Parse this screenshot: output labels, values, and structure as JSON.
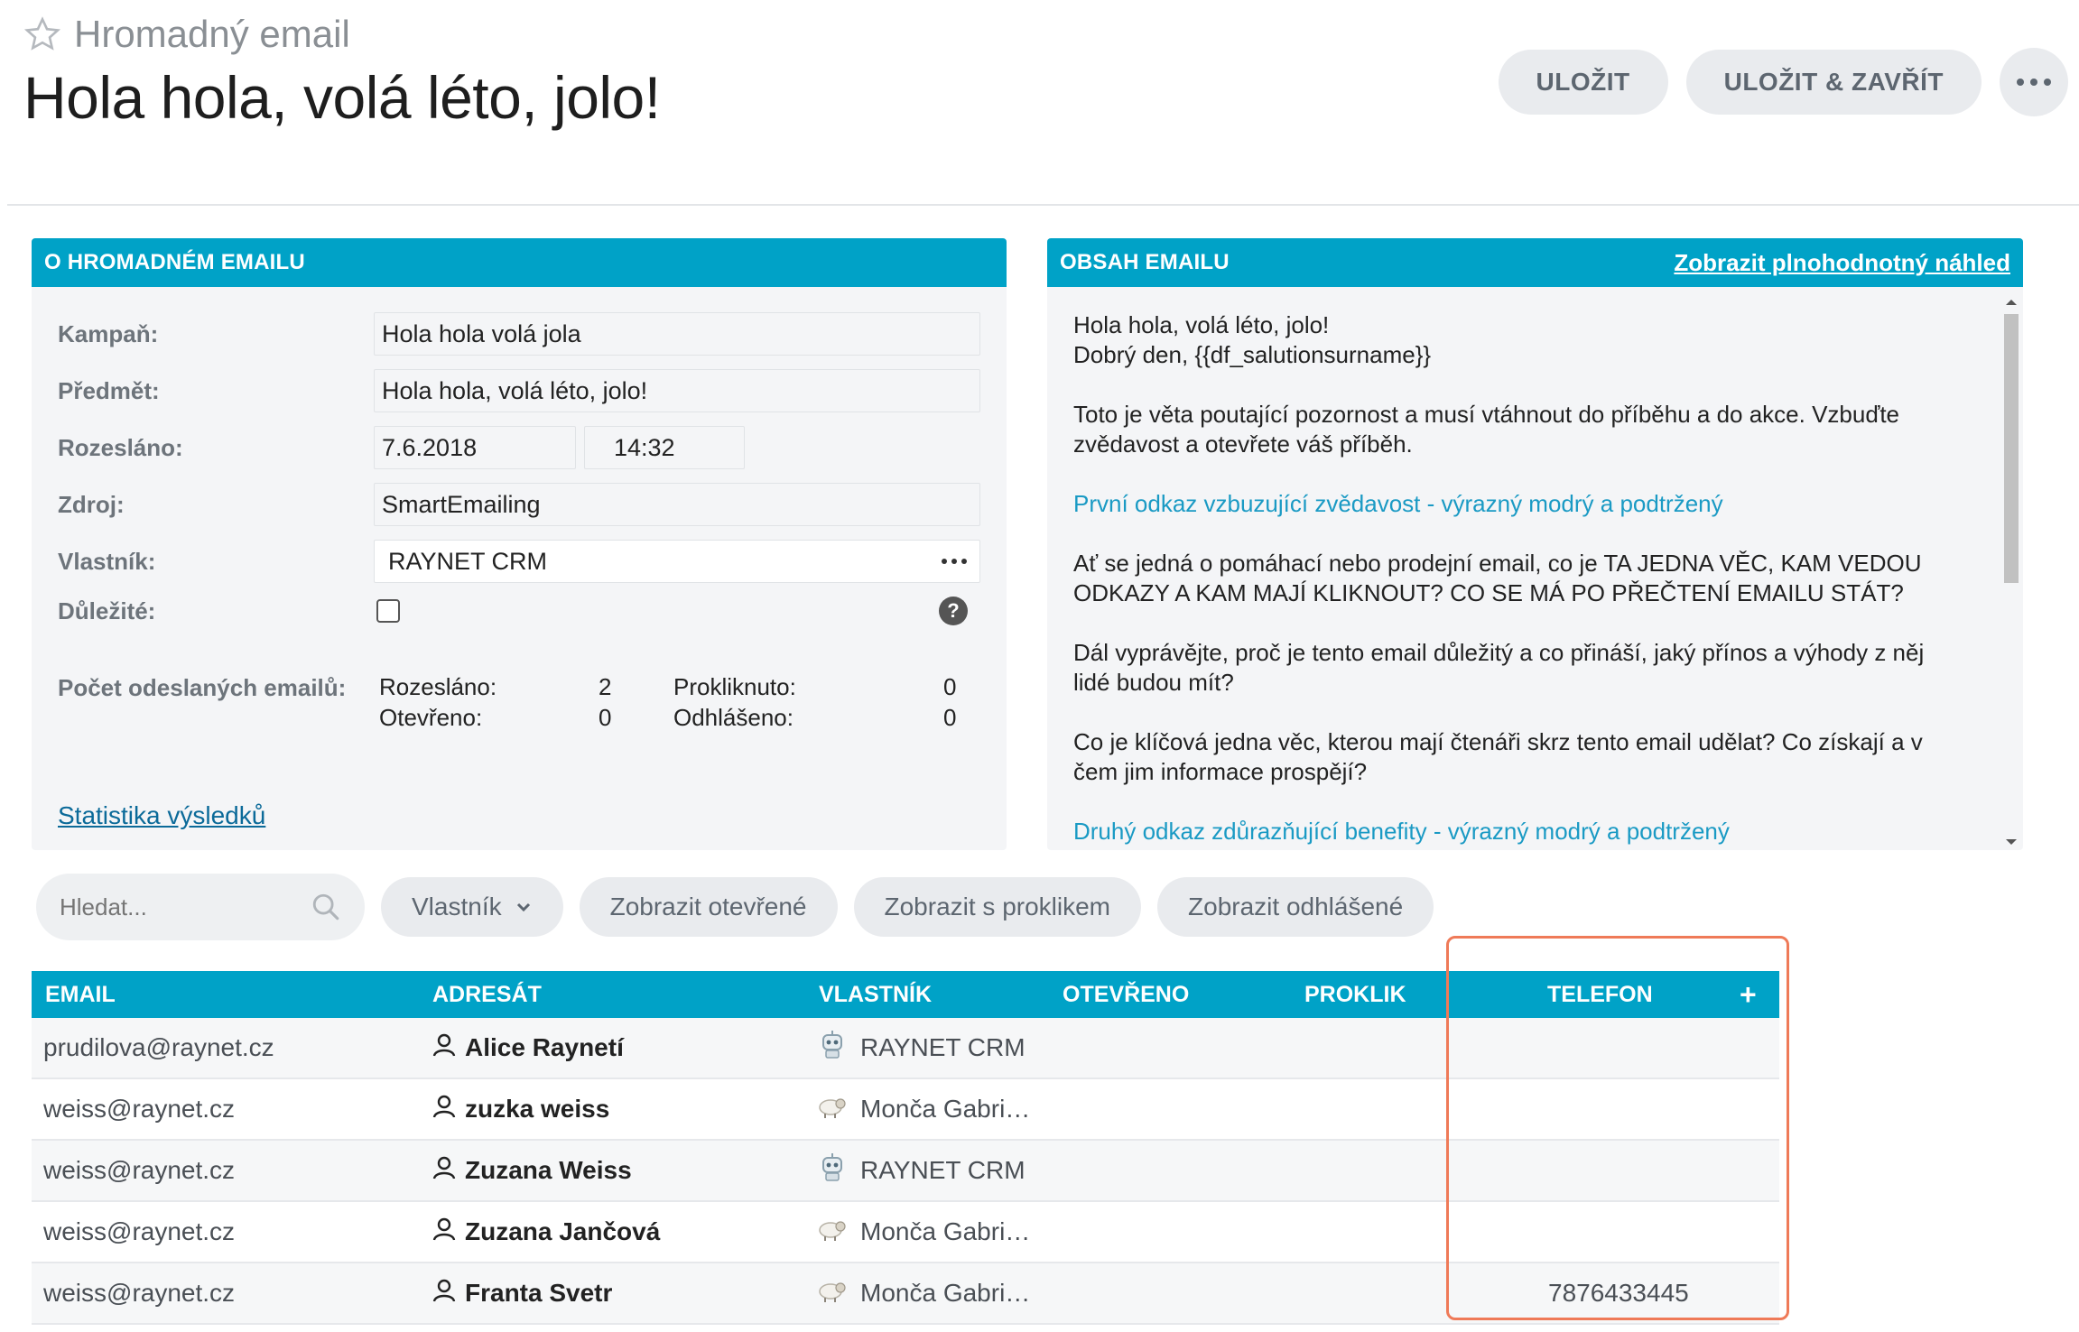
{
  "header": {
    "record_type": "Hromadný email",
    "title": "Hola hola, volá léto, jolo!",
    "save_label": "ULOŽIT",
    "save_close_label": "ULOŽIT & ZAVŘÍT"
  },
  "about": {
    "heading": "O HROMADNÉM EMAILU",
    "fields": {
      "campaign_label": "Kampaň:",
      "campaign_value": "Hola hola volá jola",
      "subject_label": "Předmět:",
      "subject_value": "Hola hola, volá léto, jolo!",
      "sent_label": "Rozesláno:",
      "sent_date": "7.6.2018",
      "sent_time": "14:32",
      "source_label": "Zdroj:",
      "source_value": "SmartEmailing",
      "owner_label": "Vlastník:",
      "owner_value": "RAYNET CRM",
      "important_label": "Důležité:",
      "important_checked": false,
      "help": "?"
    },
    "stats": {
      "label": "Počet odeslaných emailů:",
      "sent_label": "Rozesláno:",
      "sent_value": "2",
      "opened_label": "Otevřeno:",
      "opened_value": "0",
      "clicked_label": "Prokliknuto:",
      "clicked_value": "0",
      "unsub_label": "Odhlášeno:",
      "unsub_value": "0"
    },
    "results_link": "Statistika výsledků"
  },
  "content": {
    "heading": "OBSAH EMAILU",
    "preview_link": "Zobrazit plnohodnotný náhled",
    "body": [
      {
        "lines": [
          "Hola hola, volá léto, jolo!",
          "Dobrý den, {{df_salutionsurname}}"
        ],
        "style": "text"
      },
      {
        "lines": [
          "Toto je věta poutající pozornost a musí vtáhnout do příběhu a do akce. Vzbuďte",
          "zvědavost a otevřete váš příběh."
        ],
        "style": "text"
      },
      {
        "lines": [
          "První odkaz vzbuzující zvědavost - výrazný modrý a podtržený"
        ],
        "style": "link"
      },
      {
        "lines": [
          "Ať se jedná o pomáhací nebo prodejní email, co je TA JEDNA VĚC, KAM VEDOU",
          "ODKAZY A KAM MAJÍ KLIKNOUT? CO SE MÁ PO PŘEČTENÍ EMAILU STÁT?"
        ],
        "style": "text"
      },
      {
        "lines": [
          "Dál vyprávějte, proč je tento email důležitý a co přináší, jaký přínos a výhody z něj",
          "lidé budou mít?"
        ],
        "style": "text"
      },
      {
        "lines": [
          "Co je klíčová jedna věc, kterou mají čtenáři skrz tento email udělat? Co získají a v",
          "čem jim informace prospějí?"
        ],
        "style": "text"
      },
      {
        "lines": [
          "Druhý odkaz zdůrazňující benefity - výrazný modrý a podtržený"
        ],
        "style": "link"
      }
    ]
  },
  "filters": {
    "search_placeholder": "Hledat...",
    "owner": "Vlastník",
    "opened": "Zobrazit otevřené",
    "clicked": "Zobrazit s proklikem",
    "unsubscribed": "Zobrazit odhlášené"
  },
  "table": {
    "columns": {
      "email": "EMAIL",
      "recipient": "ADRESÁT",
      "owner": "VLASTNÍK",
      "opened": "OTEVŘENO",
      "click": "PROKLIK",
      "phone": "TELEFON",
      "add": "+"
    },
    "rows": [
      {
        "email": "prudilova@raynet.cz",
        "recipient": "Alice Raynetí",
        "owner": "RAYNET CRM",
        "owner_icon": "robot-icon",
        "phone": ""
      },
      {
        "email": "weiss@raynet.cz",
        "recipient": "zuzka weiss",
        "owner": "Monča Gabri…",
        "owner_icon": "sheep-avatar-icon",
        "phone": ""
      },
      {
        "email": "weiss@raynet.cz",
        "recipient": "Zuzana Weiss",
        "owner": "RAYNET CRM",
        "owner_icon": "robot-icon",
        "phone": ""
      },
      {
        "email": "weiss@raynet.cz",
        "recipient": "Zuzana Jančová",
        "owner": "Monča Gabri…",
        "owner_icon": "sheep-avatar-icon",
        "phone": ""
      },
      {
        "email": "weiss@raynet.cz",
        "recipient": "Franta Svetr",
        "owner": "Monča Gabri…",
        "owner_icon": "sheep-avatar-icon",
        "phone": "7876433445"
      }
    ]
  },
  "colors": {
    "accent": "#00a2c7",
    "link": "#1a9ac4",
    "highlight": "#ef7a58"
  }
}
